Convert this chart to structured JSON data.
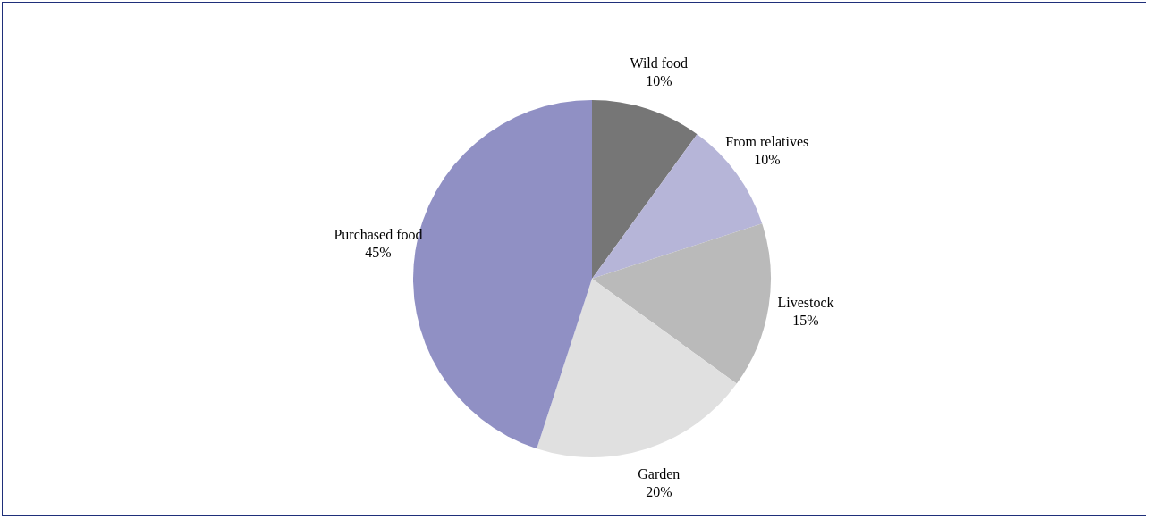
{
  "chart_data": {
    "type": "pie",
    "categories": [
      "Wild food",
      "From relatives",
      "Livestock",
      "Garden",
      "Purchased food"
    ],
    "values": [
      10,
      10,
      15,
      20,
      45
    ],
    "value_labels": [
      "10%",
      "10%",
      "15%",
      "20%",
      "45%"
    ],
    "colors": [
      "#767676",
      "#b6b5d8",
      "#bababa",
      "#e0e0e0",
      "#9090c4"
    ],
    "legend": false
  }
}
